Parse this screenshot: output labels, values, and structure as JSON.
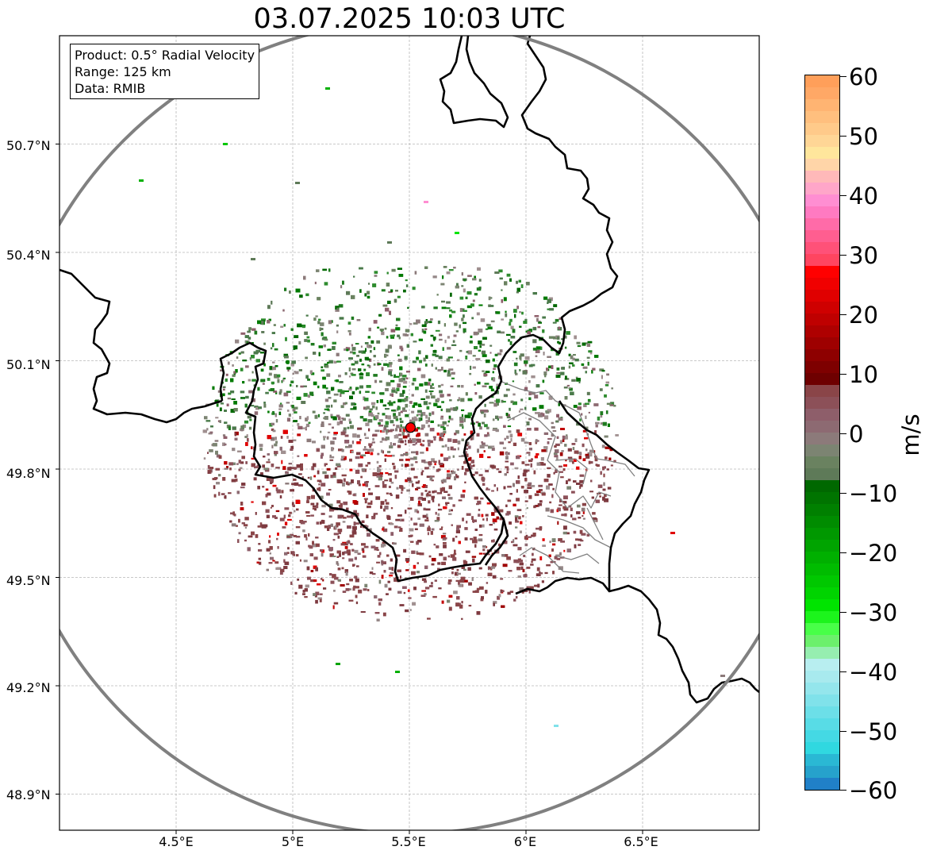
{
  "title": "03.07.2025 10:03 UTC",
  "info": {
    "product": "Product: 0.5° Radial Velocity",
    "range": "Range: 125 km",
    "data": "Data: RMIB"
  },
  "axes": {
    "lat_labels": [
      "50.7°N",
      "50.4°N",
      "50.1°N",
      "49.8°N",
      "49.5°N",
      "49.2°N",
      "48.9°N"
    ],
    "lon_labels": [
      "4.5°E",
      "5°E",
      "5.5°E",
      "6°E",
      "6.5°E"
    ],
    "lat_values": [
      50.7,
      50.4,
      50.1,
      49.8,
      49.5,
      49.2,
      48.9
    ],
    "lon_values": [
      4.5,
      5.0,
      5.5,
      6.0,
      6.5
    ],
    "lon_range": [
      4.0,
      7.0
    ],
    "lat_range": [
      48.8,
      51.0
    ],
    "grid": true
  },
  "radar": {
    "site_lon": 5.505,
    "site_lat": 49.915,
    "range_km": 125,
    "site_color": "#ff0000",
    "ring_color": "#808080"
  },
  "colorbar": {
    "unit": "m/s",
    "min": -60,
    "max": 60,
    "tick_labels": [
      "60",
      "50",
      "40",
      "30",
      "20",
      "10",
      "0",
      "−10",
      "−20",
      "−30",
      "−40",
      "−50",
      "−60"
    ],
    "tick_values": [
      60,
      50,
      40,
      30,
      20,
      10,
      0,
      -10,
      -20,
      -30,
      -40,
      -50,
      -60
    ],
    "colors_top_to_bottom": [
      "#ff9f5a",
      "#ffa866",
      "#ffb472",
      "#ffbf7e",
      "#ffca8a",
      "#ffd696",
      "#ffe69c",
      "#ffd5a8",
      "#ffb9b9",
      "#ffa6c9",
      "#ff8ed2",
      "#ff7ac1",
      "#ff6ba8",
      "#ff5e90",
      "#ff5178",
      "#ff4560",
      "#ff0000",
      "#f00000",
      "#e00000",
      "#cf0000",
      "#bf0000",
      "#ae0000",
      "#9e0000",
      "#8e0000",
      "#7e0000",
      "#6e0000",
      "#8a4548",
      "#8c5058",
      "#8e5e6a",
      "#8d6a72",
      "#8c7a7a",
      "#7c8472",
      "#6a8260",
      "#5e7a58",
      "#006800",
      "#007400",
      "#008000",
      "#008c00",
      "#009800",
      "#00a400",
      "#00b000",
      "#00bc00",
      "#00c800",
      "#00d400",
      "#00e400",
      "#1cf41c",
      "#48ff48",
      "#6cf06c",
      "#96eeb0",
      "#b8eef0",
      "#a8eaee",
      "#94e6ec",
      "#80e2ea",
      "#6cdfe8",
      "#58dce6",
      "#44d9e4",
      "#30d8e0",
      "#2ab8d4",
      "#26a2cc",
      "#2080c8"
    ]
  },
  "chart_data": {
    "type": "heatmap",
    "description_values": "Doppler radial velocity field around the radar site",
    "title": "03.07.2025 10:03 UTC"
  }
}
